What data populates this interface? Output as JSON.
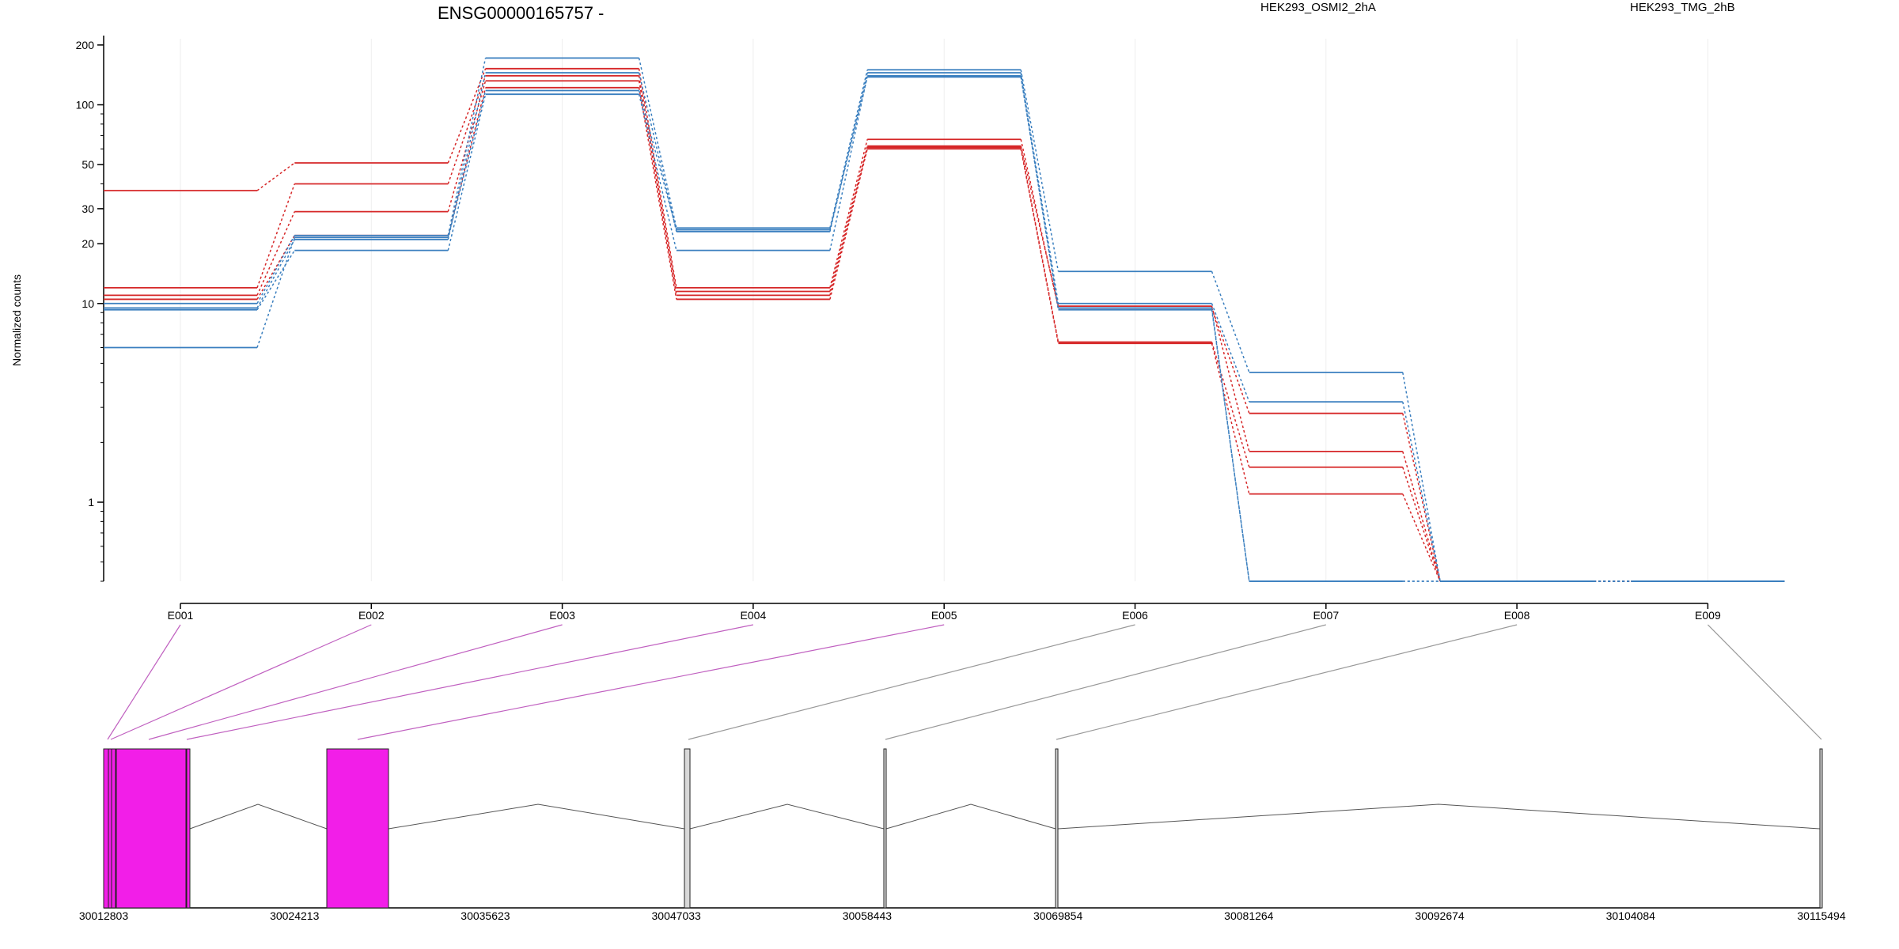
{
  "chart_data": {
    "type": "line",
    "title": "ENSG00000165757 -",
    "ylabel": "Normalized counts",
    "xlabel": "",
    "y_scale": "log",
    "ylim": [
      0.4,
      200
    ],
    "y_ticks": [
      1,
      10,
      20,
      30,
      50,
      100,
      200
    ],
    "grid": true,
    "legend_position": "top-right",
    "categories": [
      "E001",
      "E002",
      "E003",
      "E004",
      "E005",
      "E006",
      "E007",
      "E008",
      "E009"
    ],
    "groups": [
      {
        "name": "HEK293_OSMI2_2hA",
        "color": "#d62728"
      },
      {
        "name": "HEK293_TMG_2hB",
        "color": "#3a7fbf"
      }
    ],
    "series": [
      {
        "group": "HEK293_OSMI2_2hA",
        "values": [
          37,
          51,
          152,
          12,
          67,
          9.5,
          2.8,
          0.4,
          0.4
        ]
      },
      {
        "group": "HEK293_OSMI2_2hA",
        "values": [
          12,
          40,
          140,
          11.5,
          62,
          9.7,
          1.8,
          0.4,
          0.4
        ]
      },
      {
        "group": "HEK293_OSMI2_2hA",
        "values": [
          11,
          29,
          132,
          11,
          61,
          6.4,
          1.5,
          0.4,
          0.4
        ]
      },
      {
        "group": "HEK293_OSMI2_2hA",
        "values": [
          10.5,
          22,
          122,
          10.5,
          60,
          6.3,
          1.1,
          0.4,
          0.4
        ]
      },
      {
        "group": "HEK293_TMG_2hB",
        "values": [
          10,
          22,
          172,
          24,
          150,
          14.5,
          4.5,
          0.4,
          0.4
        ]
      },
      {
        "group": "HEK293_TMG_2hB",
        "values": [
          9.5,
          21,
          145,
          23,
          145,
          10,
          3.2,
          0.4,
          0.4
        ]
      },
      {
        "group": "HEK293_TMG_2hB",
        "values": [
          9.3,
          18.5,
          113,
          18.5,
          140,
          9.3,
          0.4,
          0.4,
          0.4
        ]
      },
      {
        "group": "HEK293_TMG_2hB",
        "values": [
          6,
          21.5,
          118,
          23.5,
          138,
          9.5,
          0.4,
          0.4,
          0.4
        ]
      }
    ],
    "gene_model": {
      "coordinate_ticks": [
        "30012803",
        "30024213",
        "30035623",
        "30047033",
        "30058443",
        "30069854",
        "30081264",
        "30092674",
        "30104084",
        "30115494"
      ],
      "highlight_color": "#f21ee8",
      "highlighted_exons": [
        "E001",
        "E002",
        "E003",
        "E004",
        "E005"
      ]
    }
  }
}
